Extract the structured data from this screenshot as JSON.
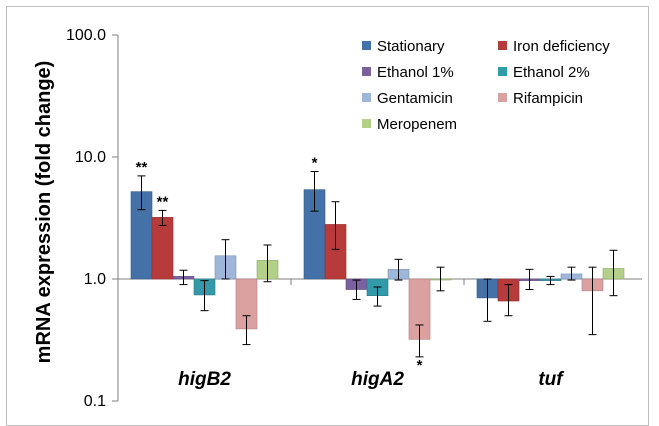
{
  "chart_data": {
    "type": "bar",
    "y_scale": "log",
    "ylabel": "mRNA expression (fold change)",
    "xlabel": "",
    "ylim": [
      0.1,
      100
    ],
    "ytick_labels": [
      "0.1",
      "1.0",
      "10.0",
      "100.0"
    ],
    "yticks": [
      0.1,
      1,
      10,
      100
    ],
    "grid": false,
    "legend_position": "top-right",
    "categories": [
      "higB2",
      "higA2",
      "tuf"
    ],
    "series": [
      {
        "name": "Stationary",
        "color": "#4472a8",
        "values": [
          5.2,
          5.4,
          0.7
        ],
        "err_low": [
          3.7,
          3.6,
          0.45
        ],
        "err_high": [
          7.0,
          7.6,
          1.0
        ],
        "sig": [
          "**",
          "*",
          ""
        ]
      },
      {
        "name": "Iron deficiency",
        "color": "#b83b3b",
        "values": [
          3.2,
          2.8,
          0.66
        ],
        "err_low": [
          2.75,
          1.75,
          0.5
        ],
        "err_high": [
          3.65,
          4.3,
          0.9
        ],
        "sig": [
          "**",
          "",
          ""
        ]
      },
      {
        "name": "Ethanol 1%",
        "color": "#7b60a0",
        "values": [
          1.05,
          0.82,
          0.97
        ],
        "err_low": [
          0.9,
          0.68,
          0.82
        ],
        "err_high": [
          1.18,
          0.98,
          1.2
        ],
        "sig": [
          "",
          "",
          ""
        ]
      },
      {
        "name": "Ethanol 2%",
        "color": "#339aaa",
        "values": [
          0.74,
          0.73,
          0.97
        ],
        "err_low": [
          0.55,
          0.6,
          0.9
        ],
        "err_high": [
          0.97,
          0.86,
          1.05
        ],
        "sig": [
          "",
          "",
          ""
        ]
      },
      {
        "name": "Gentamicin",
        "color": "#9db6d9",
        "values": [
          1.55,
          1.2,
          1.1
        ],
        "err_low": [
          1.0,
          0.98,
          0.98
        ],
        "err_high": [
          2.1,
          1.45,
          1.25
        ],
        "sig": [
          "",
          "",
          ""
        ]
      },
      {
        "name": "Rifampicin",
        "color": "#dba0a0",
        "values": [
          0.39,
          0.32,
          0.8
        ],
        "err_low": [
          0.29,
          0.23,
          0.35
        ],
        "err_high": [
          0.5,
          0.42,
          1.25
        ],
        "sig": [
          "",
          "*",
          ""
        ]
      },
      {
        "name": "Meropenem",
        "color": "#b3cf89",
        "values": [
          1.42,
          1.0,
          1.22
        ],
        "err_low": [
          0.95,
          0.8,
          0.73
        ],
        "err_high": [
          1.9,
          1.25,
          1.72
        ],
        "sig": [
          "",
          "",
          ""
        ]
      }
    ]
  }
}
